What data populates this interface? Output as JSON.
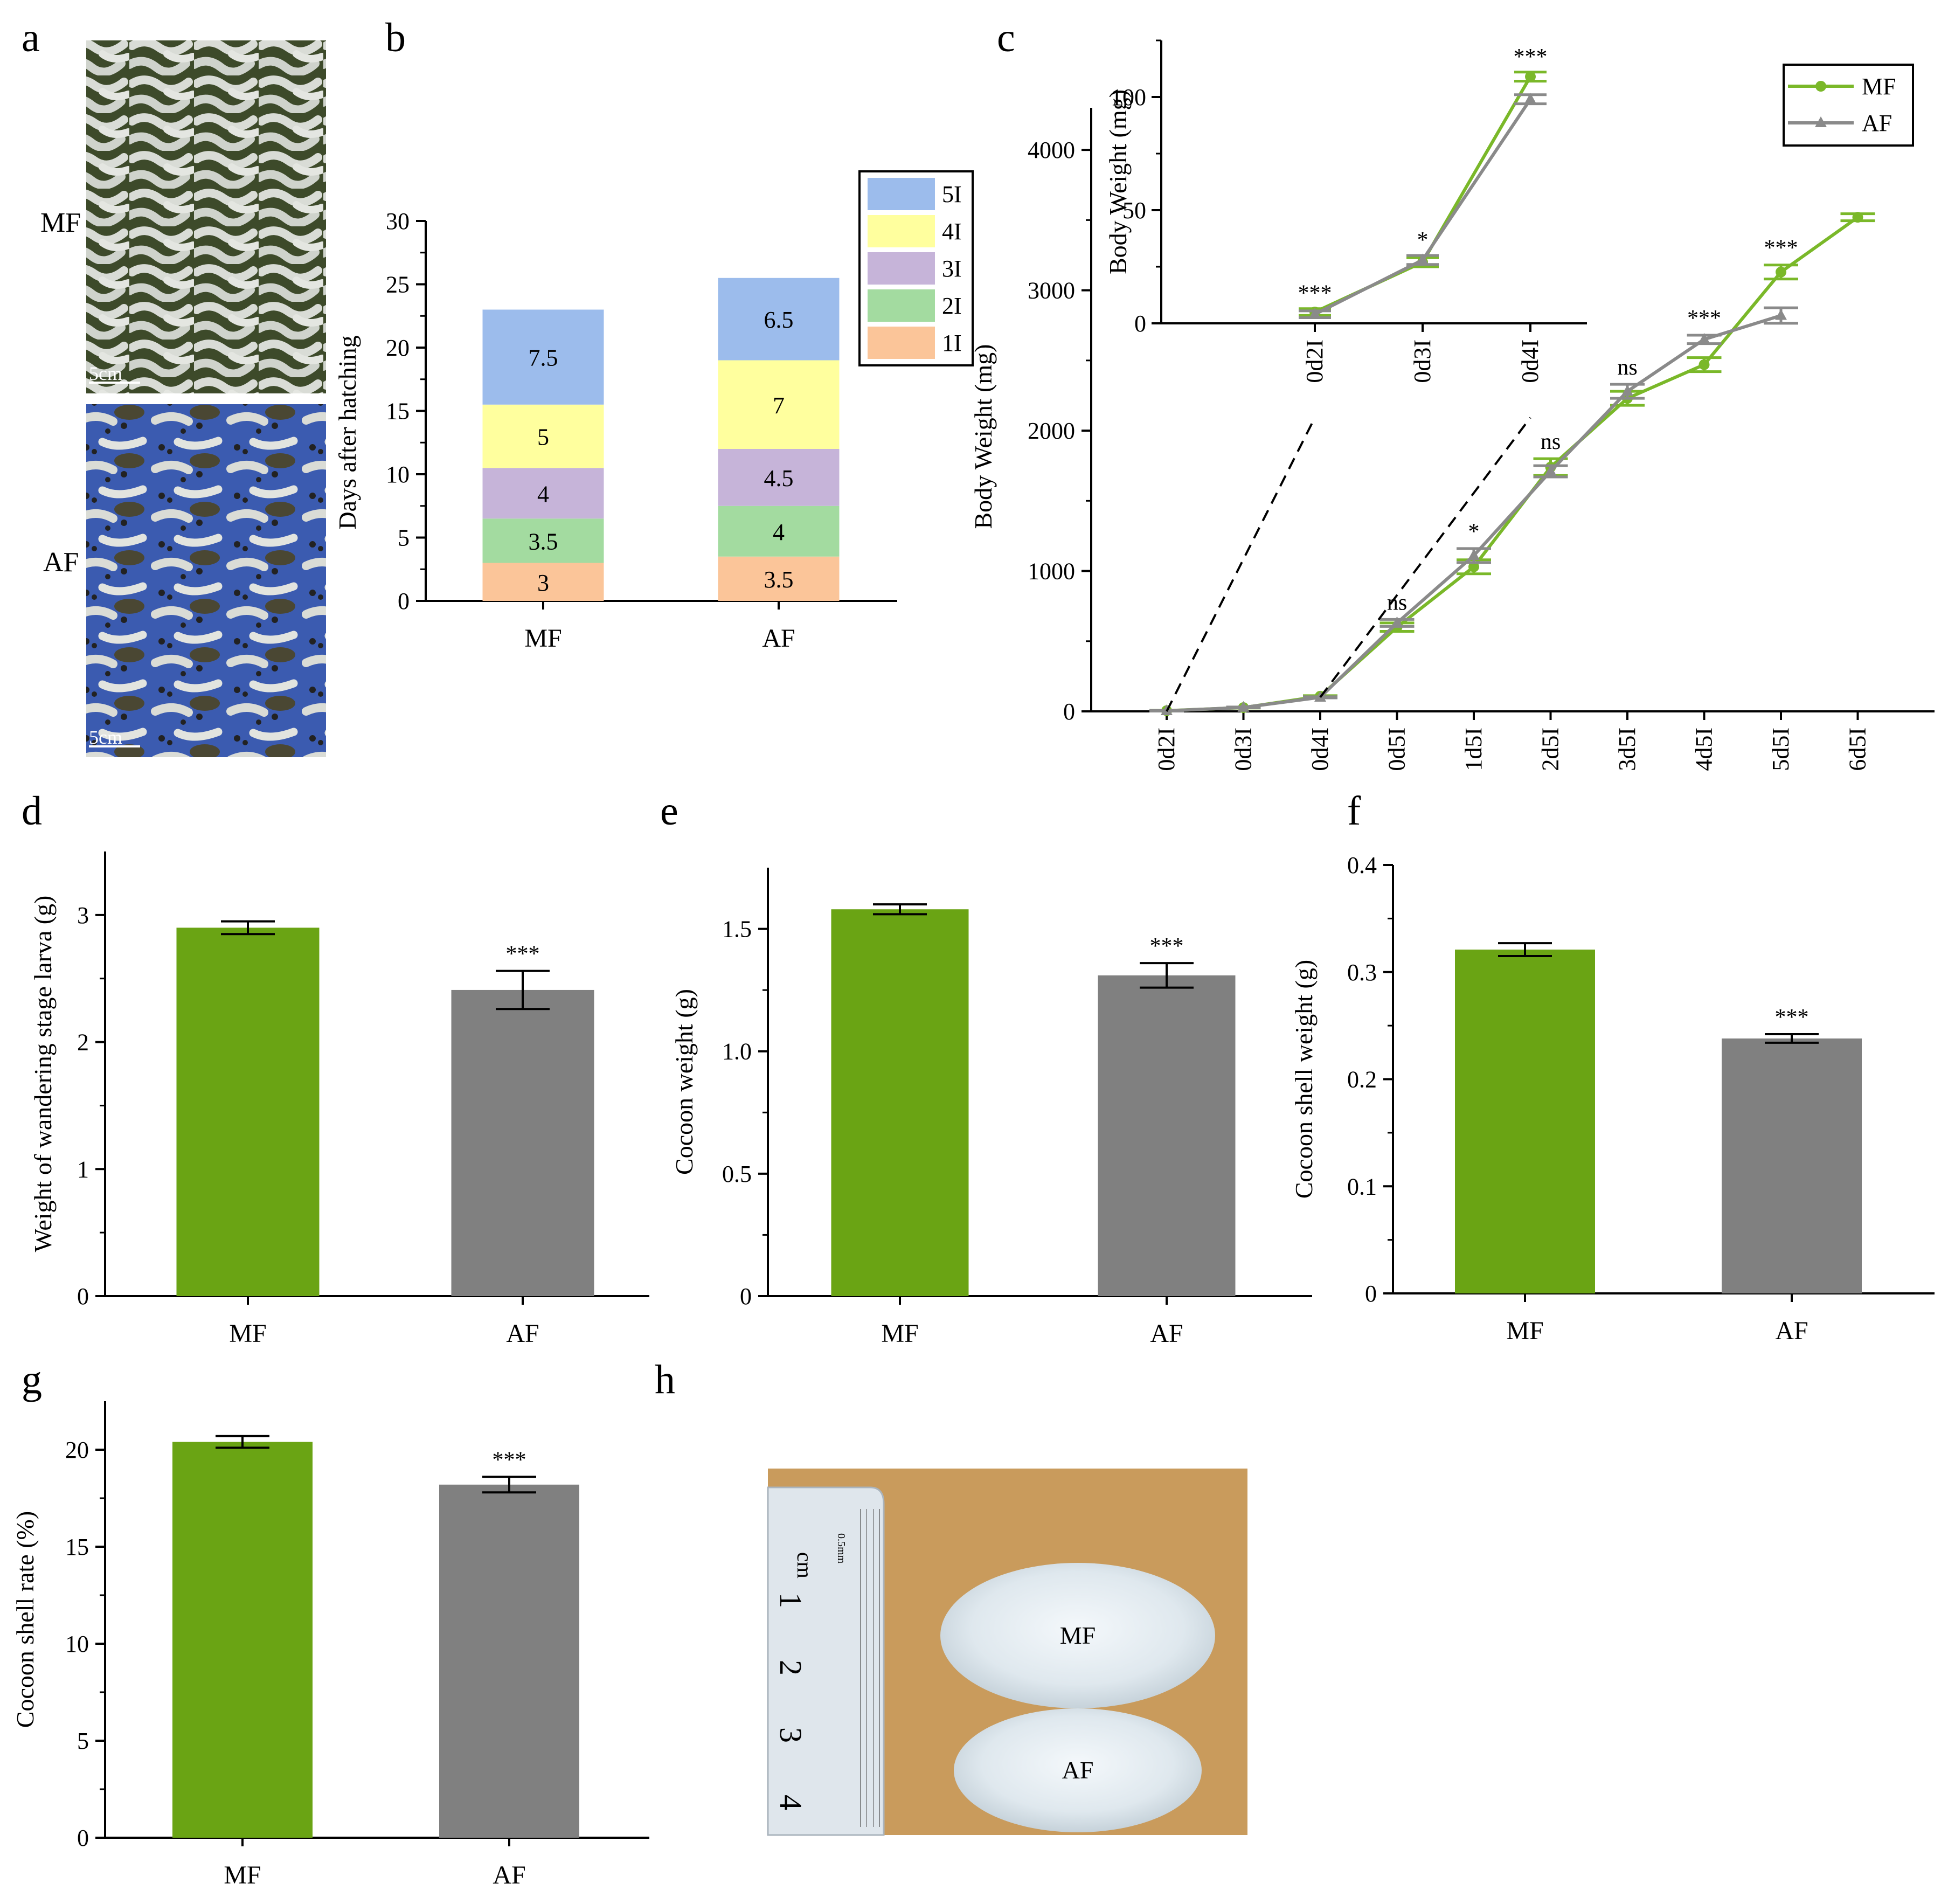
{
  "panels": {
    "a": "a",
    "b": "b",
    "c": "c",
    "d": "d",
    "e": "e",
    "f": "f",
    "g": "g",
    "h": "h"
  },
  "photo_a": {
    "top_label": "MF",
    "bottom_label": "AF",
    "scale_top": "5cm",
    "scale_bottom": "5cm"
  },
  "photo_h": {
    "top_label": "MF",
    "bottom_label": "AF",
    "ruler_unit": "cm",
    "ruler_sub": "0.5mm",
    "ruler_numbers": [
      "1",
      "2",
      "3",
      "4"
    ]
  },
  "colors": {
    "mf": "#6aa414",
    "af": "#808080",
    "mf_line": "#7ab829",
    "af_line": "#8a8a8a",
    "i1": "#fbc599",
    "i2": "#a3dba0",
    "i3": "#c6b4d9",
    "i4": "#ffff9e",
    "i5": "#9cbcec"
  },
  "chart_data": [
    {
      "id": "b",
      "type": "bar",
      "stacked": true,
      "ylabel": "Days after hatching",
      "ylim": [
        0,
        30
      ],
      "yticks": [
        "0",
        "5",
        "10",
        "15",
        "20",
        "25",
        "30"
      ],
      "categories": [
        "MF",
        "AF"
      ],
      "series": [
        {
          "name": "1I",
          "values": [
            3,
            3.5
          ],
          "labels": [
            "3",
            "3.5"
          ]
        },
        {
          "name": "2I",
          "values": [
            3.5,
            4
          ],
          "labels": [
            "3.5",
            "4"
          ]
        },
        {
          "name": "3I",
          "values": [
            4,
            4.5
          ],
          "labels": [
            "4",
            "4.5"
          ]
        },
        {
          "name": "4I",
          "values": [
            5,
            7
          ],
          "labels": [
            "5",
            "7"
          ]
        },
        {
          "name": "5I",
          "values": [
            7.5,
            6.5
          ],
          "labels": [
            "7.5",
            "6.5"
          ]
        }
      ],
      "legend": [
        "5I",
        "4I",
        "3I",
        "2I",
        "1I"
      ]
    },
    {
      "id": "c",
      "type": "line",
      "ylabel": "Body Weight (mg)",
      "ylim": [
        0,
        4300
      ],
      "yticks": [
        "0",
        "1000",
        "2000",
        "3000",
        "4000"
      ],
      "categories": [
        "0d2I",
        "0d3I",
        "0d4I",
        "0d5I",
        "1d5I",
        "2d5I",
        "3d5I",
        "4d5I",
        "5d5I",
        "6d5I"
      ],
      "series": [
        {
          "name": "MF",
          "values": [
            5,
            27,
            108,
            600,
            1030,
            1740,
            2230,
            2470,
            3130,
            3520
          ],
          "errors": [
            2,
            3,
            4,
            30,
            50,
            60,
            50,
            50,
            50,
            25
          ]
        },
        {
          "name": "AF",
          "values": [
            4,
            28,
            100,
            630,
            1110,
            1710,
            2280,
            2650,
            2820,
            null
          ],
          "errors": [
            2,
            3,
            4,
            25,
            50,
            40,
            50,
            30,
            55,
            null
          ]
        }
      ],
      "significance": [
        "***",
        "*",
        "***",
        "ns",
        "*",
        "ns",
        "ns",
        "***",
        "***",
        ""
      ],
      "legend": [
        "MF",
        "AF"
      ],
      "inset": {
        "ylabel": "Body Weight (mg)",
        "ylim": [
          0,
          125
        ],
        "yticks": [
          "0",
          "50",
          "100"
        ],
        "categories": [
          "0d2I",
          "0d3I",
          "0d4I"
        ],
        "series": [
          {
            "name": "MF",
            "values": [
              5,
              27,
              109
            ],
            "errors": [
              1.5,
              2,
              2
            ]
          },
          {
            "name": "AF",
            "values": [
              4,
              28,
              99
            ],
            "errors": [
              1.5,
              2,
              2
            ]
          }
        ],
        "significance": [
          "***",
          "*",
          "***"
        ]
      }
    },
    {
      "id": "d",
      "type": "bar",
      "ylabel": "Weight of wandering stage larva (g)",
      "ylim": [
        0,
        3.5
      ],
      "yticks": [
        "0",
        "1",
        "2",
        "3"
      ],
      "categories": [
        "MF",
        "AF"
      ],
      "values": [
        2.9,
        2.41
      ],
      "errors": [
        0.05,
        0.15
      ],
      "significance": [
        "",
        "***"
      ]
    },
    {
      "id": "e",
      "type": "bar",
      "ylabel": "Cocoon weight (g)",
      "ylim": [
        0,
        1.75
      ],
      "yticks": [
        "0",
        "0.5",
        "1.0",
        "1.5"
      ],
      "categories": [
        "MF",
        "AF"
      ],
      "values": [
        1.58,
        1.31
      ],
      "errors": [
        0.02,
        0.05
      ],
      "significance": [
        "",
        "***"
      ]
    },
    {
      "id": "f",
      "type": "bar",
      "ylabel": "Cocoon shell weight (g)",
      "ylim": [
        0,
        0.4
      ],
      "yticks": [
        "0",
        "0.1",
        "0.2",
        "0.3",
        "0.4"
      ],
      "categories": [
        "MF",
        "AF"
      ],
      "values": [
        0.321,
        0.238
      ],
      "errors": [
        0.006,
        0.004
      ],
      "significance": [
        "",
        "***"
      ]
    },
    {
      "id": "g",
      "type": "bar",
      "ylabel": "Cocoon shell rate (%)",
      "ylim": [
        0,
        22.5
      ],
      "yticks": [
        "0",
        "5",
        "10",
        "15",
        "20"
      ],
      "categories": [
        "MF",
        "AF"
      ],
      "values": [
        20.4,
        18.2
      ],
      "errors": [
        0.3,
        0.4
      ],
      "significance": [
        "",
        "***"
      ]
    }
  ]
}
